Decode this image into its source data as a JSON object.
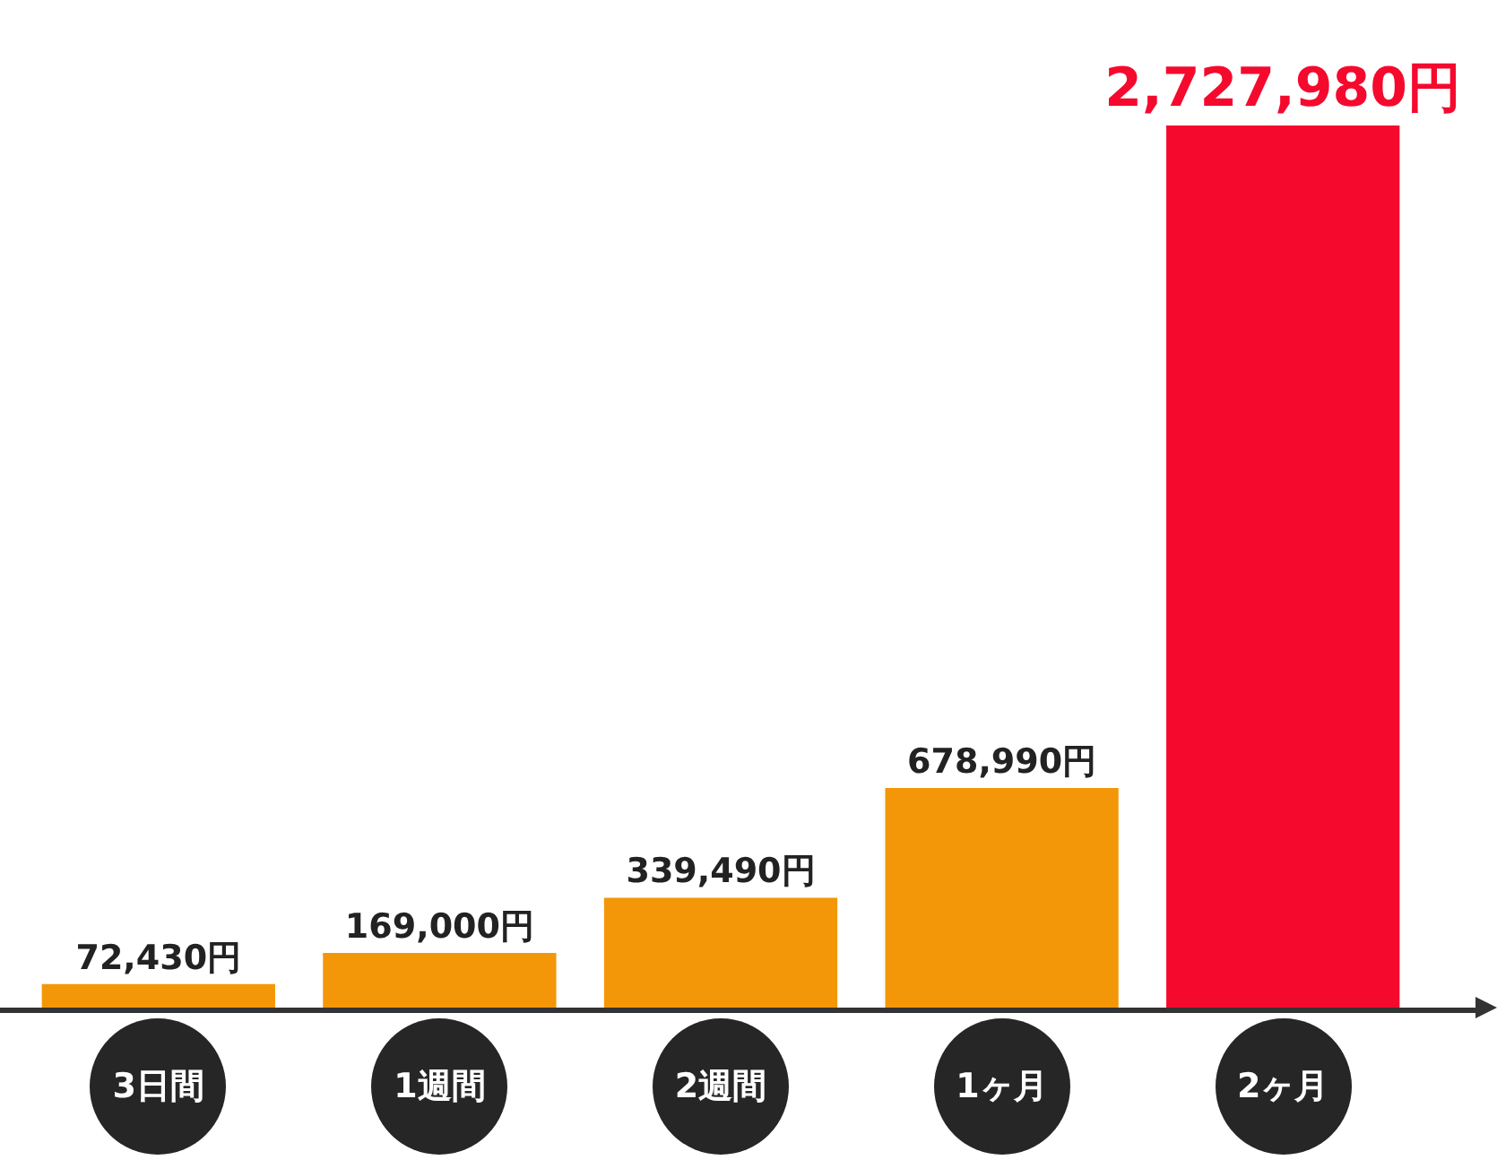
{
  "chart_data": {
    "type": "bar",
    "categories": [
      "3日間",
      "1週間",
      "2週間",
      "1ヶ月",
      "2ヶ月"
    ],
    "values": [
      72430,
      169000,
      339490,
      678990,
      2727980
    ],
    "colors": [
      "#f39708",
      "#f39708",
      "#f39708",
      "#f39708",
      "#f50a2e"
    ],
    "value_labels": [
      "72,430円",
      "169,000円",
      "339,490円",
      "678,990円",
      "2,727,980円"
    ],
    "grid": false,
    "legend": false
  }
}
